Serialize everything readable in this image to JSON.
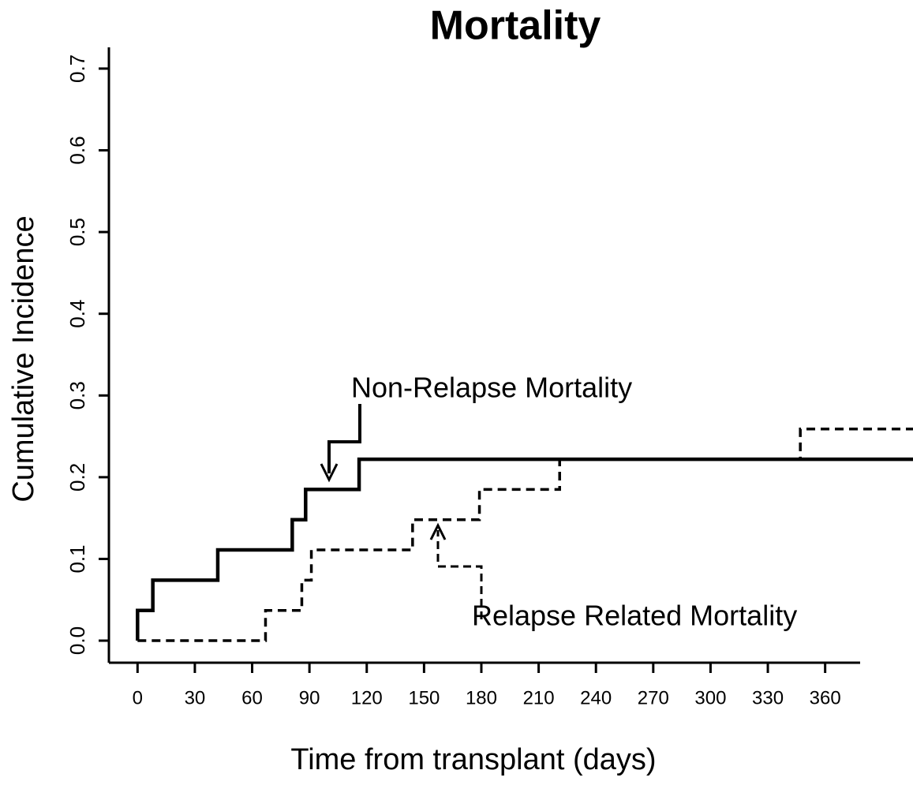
{
  "chart_data": {
    "type": "line",
    "step": "post",
    "title": "Mortality",
    "xlabel": "Time from transplant (days)",
    "ylabel": "Cumulative Incidence",
    "xlim": [
      -15,
      406
    ],
    "ylim": [
      -0.027,
      0.726
    ],
    "xticks": [
      0,
      30,
      60,
      90,
      120,
      150,
      180,
      210,
      240,
      270,
      300,
      330,
      360
    ],
    "yticks": [
      {
        "value": 0,
        "label": "0.0"
      },
      0.1,
      0.2,
      0.3,
      0.4,
      0.5,
      0.6,
      0.7
    ],
    "series": [
      {
        "name": "Non-Relapse Mortality",
        "color": "#000000",
        "linestyle": "solid",
        "x": [
          0,
          0,
          8,
          42,
          81,
          88,
          116,
          406
        ],
        "values": [
          0,
          0.037,
          0.074,
          0.111,
          0.148,
          0.185,
          0.222,
          0.222
        ]
      },
      {
        "name": "Relapse Related Mortality",
        "color": "#000000",
        "linestyle": "dashed",
        "x": [
          0,
          67,
          86,
          91,
          144,
          179,
          221,
          347,
          406
        ],
        "values": [
          0,
          0.037,
          0.074,
          0.111,
          0.148,
          0.185,
          0.222,
          0.259,
          0.259
        ]
      }
    ]
  }
}
